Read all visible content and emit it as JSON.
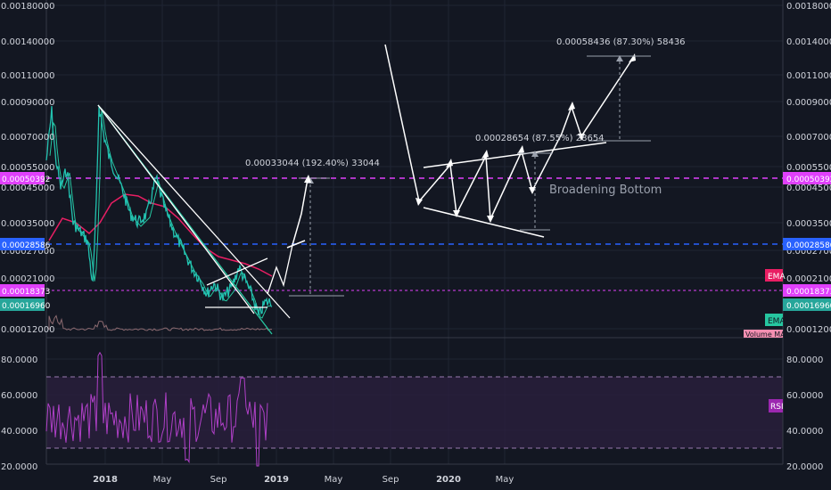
{
  "chart_data": [
    {
      "type": "line",
      "panel": "price",
      "y_scale": "log",
      "ylim": [
        0.000105,
        0.00185
      ],
      "price_ticks": [
        "0.00180000",
        "0.00140000",
        "0.00110000",
        "0.00090000",
        "0.00070000",
        "0.00055000",
        "0.00045000",
        "0.00035000",
        "0.00027000",
        "0.00021000",
        "0.00012000"
      ],
      "x_ticks": [
        {
          "label": "2018",
          "bold": true
        },
        {
          "label": "May",
          "bold": false
        },
        {
          "label": "Sep",
          "bold": false
        },
        {
          "label": "2019",
          "bold": true
        },
        {
          "label": "May",
          "bold": false
        },
        {
          "label": "Sep",
          "bold": false
        },
        {
          "label": "2020",
          "bold": true
        },
        {
          "label": "May",
          "bold": false
        }
      ],
      "price_tags": [
        {
          "label": "0.00050392",
          "color": "#e040fb",
          "text_color": "#ffffff"
        },
        {
          "label": "0.00028586",
          "color": "#2962ff",
          "text_color": "#ffffff"
        },
        {
          "label": "0.00018373",
          "color": "#e040fb",
          "text_color": "#ffffff"
        },
        {
          "label": "0.00016960",
          "color": "#26a69a",
          "text_color": "#ffffff"
        }
      ],
      "indicator_tags": [
        {
          "label": "EMA",
          "color": "#e91e63"
        },
        {
          "label": "EMA",
          "color": "#26c6a0"
        },
        {
          "label": "Volume MA",
          "color": "#f48fb1"
        }
      ],
      "annotations": [
        {
          "text": "0.00033044 (192.40%) 33044"
        },
        {
          "text": "0.00028654 (87.55%) 28654"
        },
        {
          "text": "0.00058436 (87.30%) 58436"
        },
        {
          "text": "Broadening Bottom"
        }
      ],
      "colors": {
        "price": "#22c1b0",
        "ema_slow": "#e91e63",
        "ema_fast": "#26c6a0",
        "drawing": "#ffffff",
        "magenta_line": "#e040fb",
        "blue_line": "#2962ff"
      }
    },
    {
      "type": "line",
      "panel": "rsi",
      "name": "RSI",
      "ylim": [
        20,
        90
      ],
      "ticks": [
        "80.0000",
        "60.0000",
        "40.0000",
        "20.0000"
      ],
      "bands": [
        70,
        30
      ],
      "color": "#b040c8"
    }
  ]
}
